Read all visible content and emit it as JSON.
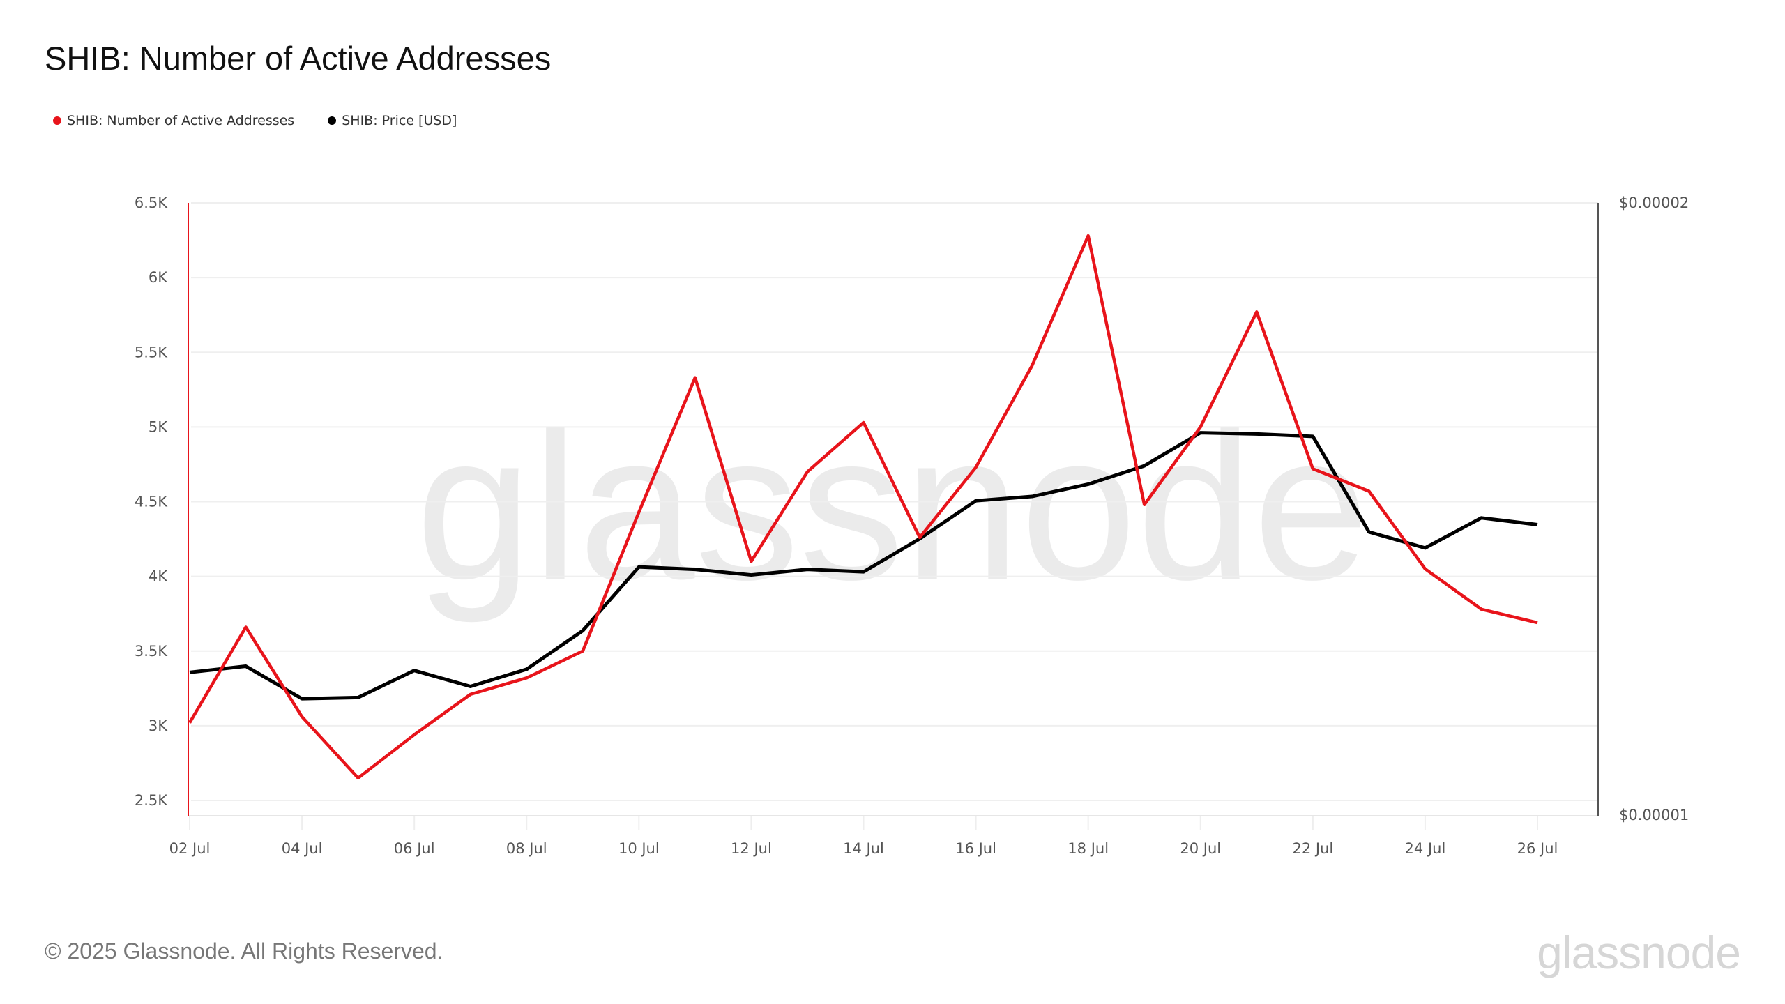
{
  "header": {
    "title": "SHIB: Number of Active Addresses"
  },
  "legend": [
    {
      "label": "SHIB: Number of Active Addresses",
      "color": "#e8141b"
    },
    {
      "label": "SHIB: Price [USD]",
      "color": "#000000"
    }
  ],
  "footer": {
    "copyright": "© 2025 Glassnode. All Rights Reserved.",
    "logo": "glassnode"
  },
  "watermark": "glassnode",
  "chart_data": {
    "type": "line",
    "title": "SHIB: Number of Active Addresses",
    "xlabel": "",
    "ylabel": "",
    "x": [
      "02 Jul",
      "03 Jul",
      "04 Jul",
      "05 Jul",
      "06 Jul",
      "07 Jul",
      "08 Jul",
      "09 Jul",
      "10 Jul",
      "11 Jul",
      "12 Jul",
      "13 Jul",
      "14 Jul",
      "15 Jul",
      "16 Jul",
      "17 Jul",
      "18 Jul",
      "19 Jul",
      "20 Jul",
      "21 Jul",
      "22 Jul",
      "23 Jul",
      "24 Jul",
      "25 Jul",
      "26 Jul"
    ],
    "x_tick_labels": [
      "02 Jul",
      "04 Jul",
      "06 Jul",
      "08 Jul",
      "10 Jul",
      "12 Jul",
      "14 Jul",
      "16 Jul",
      "18 Jul",
      "20 Jul",
      "22 Jul",
      "24 Jul",
      "26 Jul"
    ],
    "y_left_ticks": [
      "2.5K",
      "3K",
      "3.5K",
      "4K",
      "4.5K",
      "5K",
      "5.5K",
      "6K",
      "6.5K"
    ],
    "y_left_range": [
      2500,
      6500
    ],
    "y_right_ticks": [
      "$0.00001",
      "$0.00002"
    ],
    "y_right_range": [
      1e-05,
      2e-05
    ],
    "grid": true,
    "legend_position": "top-left",
    "series": [
      {
        "name": "SHIB: Number of Active Addresses",
        "axis": "left",
        "color": "#e8141b",
        "values": [
          3020,
          3660,
          3060,
          2650,
          2940,
          3210,
          3320,
          3500,
          4430,
          5330,
          4100,
          4700,
          5030,
          4260,
          4730,
          5410,
          6280,
          4480,
          5000,
          5770,
          4720,
          4570,
          4050,
          3780,
          3690
        ]
      },
      {
        "name": "SHIB: Price [USD]",
        "axis": "right",
        "color": "#000000",
        "values": [
          1.234e-05,
          1.244e-05,
          1.191e-05,
          1.193e-05,
          1.237e-05,
          1.211e-05,
          1.239e-05,
          1.302e-05,
          1.406e-05,
          1.402e-05,
          1.393e-05,
          1.402e-05,
          1.398e-05,
          1.452e-05,
          1.514e-05,
          1.521e-05,
          1.541e-05,
          1.571e-05,
          1.625e-05,
          1.623e-05,
          1.619e-05,
          1.463e-05,
          1.437e-05,
          1.486e-05,
          1.475e-05
        ]
      }
    ]
  }
}
